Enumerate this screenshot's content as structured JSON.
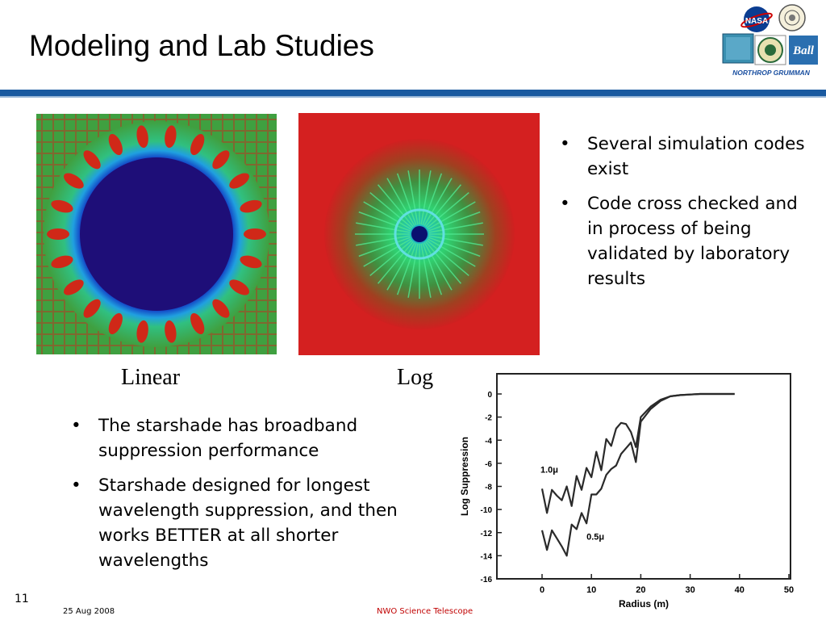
{
  "slide": {
    "title": "Modeling and Lab Studies",
    "page_number": "11",
    "date": "25 Aug 2008",
    "footer_center": "NWO Science Telescope"
  },
  "logos": {
    "nasa": "NASA",
    "goddard": "Goddard Space Flight Center",
    "northrop": "NORTHROP GRUMMAN",
    "ball": "Ball"
  },
  "images": {
    "linear_caption": "Linear",
    "log_caption": "Log"
  },
  "bullets_right": [
    "Several simulation codes exist",
    "Code cross checked and in process of being validated by laboratory results"
  ],
  "bullets_left": [
    "The starshade has broadband suppression performance",
    "Starshade designed for longest wavelength suppression, and then works BETTER at all shorter wavelengths"
  ],
  "colors": {
    "header_rule": "#1a5aa0",
    "footer_red": "#c00000"
  },
  "chart_data": {
    "type": "line",
    "xlabel": "Radius (m)",
    "ylabel": "Log Suppression",
    "xlim": [
      0,
      50
    ],
    "ylim": [
      -16,
      0
    ],
    "x_ticks": [
      "0",
      "10",
      "20",
      "30",
      "40",
      "50"
    ],
    "y_ticks": [
      "0",
      "-2",
      "-4",
      "-6",
      "-8",
      "-10",
      "-12",
      "-14",
      "-16"
    ],
    "grid": false,
    "series": [
      {
        "name": "1.0μ",
        "x": [
          0,
          1,
          2,
          3,
          4,
          5,
          6,
          7,
          8,
          9,
          10,
          11,
          12,
          13,
          14,
          15,
          16,
          17,
          18,
          19,
          20,
          22,
          24,
          26,
          28,
          30,
          32,
          35,
          39
        ],
        "y": [
          -8.2,
          -10.3,
          -8.3,
          -8.8,
          -9.2,
          -8.0,
          -9.7,
          -7.1,
          -8.3,
          -6.4,
          -7.2,
          -5.0,
          -6.6,
          -3.9,
          -4.5,
          -3.0,
          -2.5,
          -2.6,
          -3.3,
          -4.6,
          -2.0,
          -1.1,
          -0.5,
          -0.2,
          -0.1,
          -0.05,
          0,
          0,
          0
        ]
      },
      {
        "name": "0.5μ",
        "x": [
          0,
          1,
          2,
          3,
          4,
          5,
          6,
          7,
          8,
          9,
          10,
          11,
          12,
          13,
          14,
          15,
          16,
          17,
          18,
          19,
          20,
          22,
          24,
          26,
          28,
          30,
          32,
          35,
          39
        ],
        "y": [
          -11.8,
          -13.5,
          -11.8,
          -12.5,
          -13.2,
          -14.0,
          -11.3,
          -11.7,
          -10.3,
          -11.2,
          -8.7,
          -8.7,
          -8.2,
          -7.0,
          -6.5,
          -6.2,
          -5.2,
          -4.7,
          -4.2,
          -5.9,
          -2.4,
          -1.3,
          -0.6,
          -0.2,
          -0.1,
          -0.05,
          0,
          0,
          0
        ]
      }
    ]
  }
}
